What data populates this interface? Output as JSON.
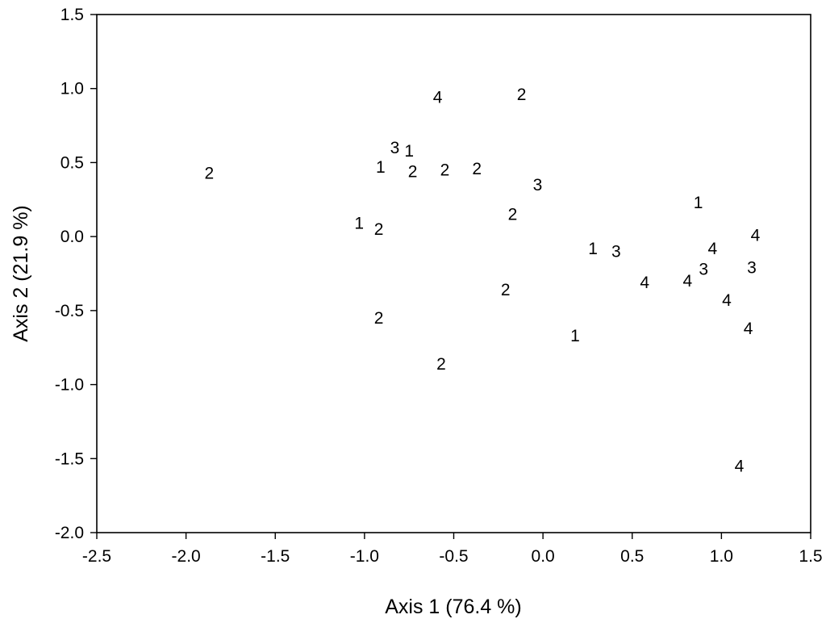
{
  "chart_data": {
    "type": "scatter",
    "xlabel": "Axis 1 (76.4 %)",
    "ylabel": "Axis 2 (21.9 %)",
    "xlim": [
      -2.5,
      1.5
    ],
    "ylim": [
      -2.0,
      1.5
    ],
    "xticks": [
      -2.5,
      -2.0,
      -1.5,
      -1.0,
      -0.5,
      0.0,
      0.5,
      1.0,
      1.5
    ],
    "yticks": [
      -2.0,
      -1.5,
      -1.0,
      -0.5,
      0.0,
      0.5,
      1.0,
      1.5
    ],
    "xtick_labels": [
      "-2.5",
      "-2.0",
      "-1.5",
      "-1.0",
      "-0.5",
      "0.0",
      "0.5",
      "1.0",
      "1.5"
    ],
    "ytick_labels": [
      "-2.0",
      "-1.5",
      "-1.0",
      "-0.5",
      "0.0",
      "0.5",
      "1.0",
      "1.5"
    ],
    "grid": false,
    "marker": "text-label",
    "points": [
      {
        "x": -1.87,
        "y": 0.43,
        "label": "2"
      },
      {
        "x": -0.59,
        "y": 0.94,
        "label": "4"
      },
      {
        "x": -0.12,
        "y": 0.96,
        "label": "2"
      },
      {
        "x": -0.83,
        "y": 0.6,
        "label": "3"
      },
      {
        "x": -0.75,
        "y": 0.58,
        "label": "1"
      },
      {
        "x": -0.91,
        "y": 0.47,
        "label": "1"
      },
      {
        "x": -0.73,
        "y": 0.44,
        "label": "2"
      },
      {
        "x": -0.55,
        "y": 0.45,
        "label": "2"
      },
      {
        "x": -0.37,
        "y": 0.46,
        "label": "2"
      },
      {
        "x": -0.03,
        "y": 0.35,
        "label": "3"
      },
      {
        "x": -0.17,
        "y": 0.15,
        "label": "2"
      },
      {
        "x": -1.03,
        "y": 0.09,
        "label": "1"
      },
      {
        "x": -0.92,
        "y": 0.05,
        "label": "2"
      },
      {
        "x": -0.21,
        "y": -0.36,
        "label": "2"
      },
      {
        "x": -0.92,
        "y": -0.55,
        "label": "2"
      },
      {
        "x": -0.57,
        "y": -0.86,
        "label": "2"
      },
      {
        "x": 0.28,
        "y": -0.08,
        "label": "1"
      },
      {
        "x": 0.41,
        "y": -0.1,
        "label": "3"
      },
      {
        "x": 0.18,
        "y": -0.67,
        "label": "1"
      },
      {
        "x": 0.57,
        "y": -0.31,
        "label": "4"
      },
      {
        "x": 0.81,
        "y": -0.3,
        "label": "4"
      },
      {
        "x": 0.9,
        "y": -0.22,
        "label": "3"
      },
      {
        "x": 0.87,
        "y": 0.23,
        "label": "1"
      },
      {
        "x": 0.95,
        "y": -0.08,
        "label": "4"
      },
      {
        "x": 1.19,
        "y": 0.01,
        "label": "4"
      },
      {
        "x": 1.17,
        "y": -0.21,
        "label": "3"
      },
      {
        "x": 1.03,
        "y": -0.43,
        "label": "4"
      },
      {
        "x": 1.15,
        "y": -0.62,
        "label": "4"
      },
      {
        "x": 1.1,
        "y": -1.55,
        "label": "4"
      }
    ]
  }
}
